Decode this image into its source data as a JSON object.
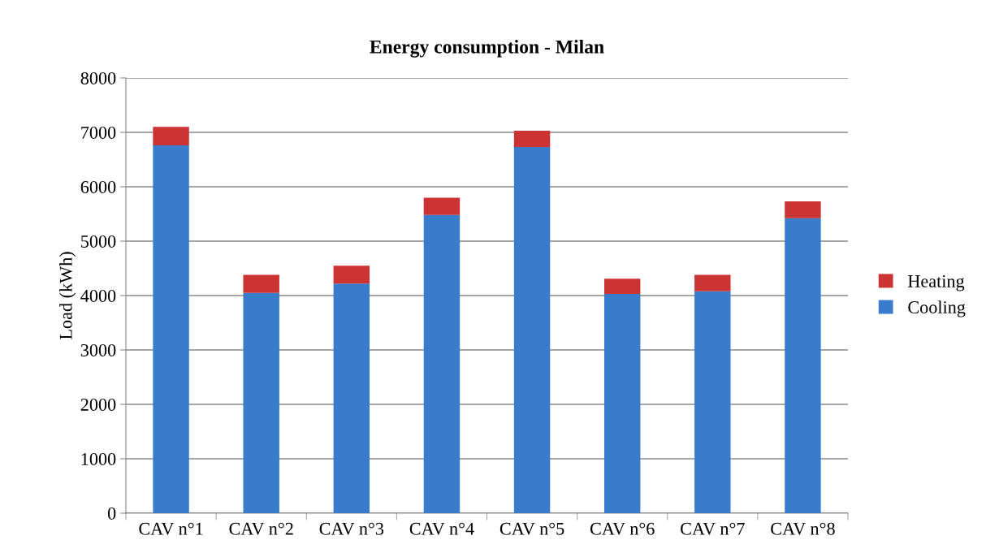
{
  "chart_data": {
    "type": "bar",
    "title": "Energy consumption - Milan",
    "ylabel": "Load (kWh)",
    "categories": [
      "CAV n°1",
      "CAV n°2",
      "CAV n°3",
      "CAV n°4",
      "CAV n°5",
      "CAV n°6",
      "CAV n°7",
      "CAV n°8"
    ],
    "series": [
      {
        "name": "Cooling",
        "color": "#3a7ccc",
        "values": [
          6760,
          4050,
          4220,
          5480,
          6730,
          4030,
          4080,
          5420
        ]
      },
      {
        "name": "Heating",
        "color": "#cc3333",
        "values": [
          340,
          330,
          330,
          320,
          300,
          280,
          300,
          310
        ]
      }
    ],
    "stacked": true,
    "ylim": [
      0,
      8000
    ],
    "yticks": [
      0,
      1000,
      2000,
      3000,
      4000,
      5000,
      6000,
      7000,
      8000
    ],
    "grid": "y",
    "legend": "right"
  }
}
